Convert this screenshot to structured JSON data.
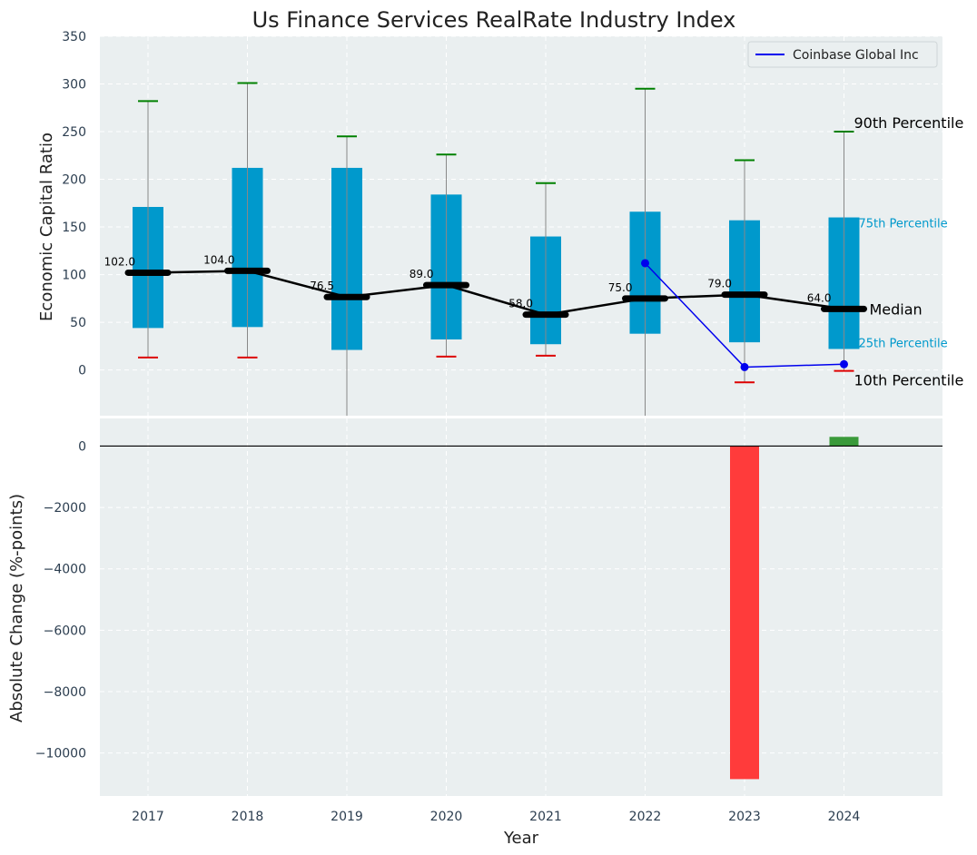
{
  "chart_data": [
    {
      "type": "box",
      "title": "Us Finance Services RealRate Industry Index",
      "ylabel": "Economic Capital Ratio",
      "ylim": [
        -48,
        350
      ],
      "yticks": [
        0,
        50,
        100,
        150,
        200,
        250,
        300,
        350
      ],
      "grid": true,
      "legend_position": "top-right",
      "categories": [
        "2017",
        "2018",
        "2019",
        "2020",
        "2021",
        "2022",
        "2023",
        "2024"
      ],
      "p10": [
        13,
        13,
        -60,
        14,
        15,
        -60,
        -13,
        -1
      ],
      "p25": [
        44,
        45,
        21,
        32,
        27,
        38,
        29,
        22
      ],
      "median": [
        102.0,
        104.0,
        76.5,
        89.0,
        58.0,
        75.0,
        79.0,
        64.0
      ],
      "p75": [
        171,
        212,
        212,
        184,
        140,
        166,
        157,
        160
      ],
      "p90": [
        282,
        301,
        245,
        226,
        196,
        295,
        220,
        250
      ],
      "median_labels": [
        "102.0",
        "104.0",
        "76.5",
        "89.0",
        "58.0",
        "75.0",
        "79.0",
        "64.0"
      ],
      "series": [
        {
          "name": "Coinbase Global Inc",
          "x": [
            "2022",
            "2023",
            "2024"
          ],
          "values": [
            112,
            3,
            6
          ],
          "color": "#0000ee"
        }
      ],
      "annotations": {
        "p90": "90th Percentile",
        "p75": "75th Percentile",
        "median": "Median",
        "p25": "25th Percentile",
        "p10": "10th Percentile"
      },
      "colors": {
        "box": "#0099cc",
        "median": "#000000",
        "p90_cap": "#008000",
        "p10_cap": "#dd0000",
        "whisker": "#888888",
        "background": "#eaeff0"
      }
    },
    {
      "type": "bar",
      "xlabel": "Year",
      "ylabel": "Absolute Change (%-points)",
      "ylim": [
        -11400,
        900
      ],
      "yticks": [
        0,
        -2000,
        -4000,
        -6000,
        -8000,
        -10000
      ],
      "ytick_labels": [
        "0",
        "−2000",
        "−4000",
        "−6000",
        "−8000",
        "−10000"
      ],
      "grid": true,
      "categories": [
        "2023",
        "2024"
      ],
      "values": [
        -10850,
        300
      ],
      "colors": {
        "negative": "#ff3b3b",
        "positive": "#3a9a3a",
        "zero_line": "#000000",
        "background": "#eaeff0"
      }
    }
  ]
}
